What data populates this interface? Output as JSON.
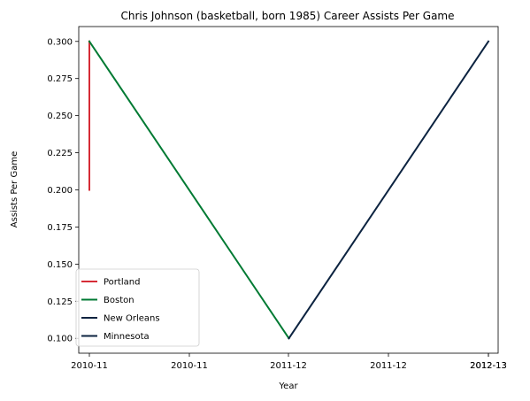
{
  "chart_data": {
    "type": "line",
    "title": "Chris Johnson (basketball, born 1985) Career Assists Per Game",
    "xlabel": "Year",
    "ylabel": "Assists Per Game",
    "x_tick_labels": [
      "2010-11",
      "2010-11",
      "2011-12",
      "2011-12",
      "2012-13",
      "2012-13"
    ],
    "y_ticks": [
      0.1,
      0.125,
      0.15,
      0.175,
      0.2,
      0.225,
      0.25,
      0.275,
      0.3
    ],
    "y_tick_labels": [
      "0.100",
      "0.125",
      "0.150",
      "0.175",
      "0.200",
      "0.225",
      "0.250",
      "0.275",
      "0.300"
    ],
    "ylim": [
      0.09,
      0.31
    ],
    "grid": false,
    "legend_position": "lower-left",
    "series": [
      {
        "name": "Portland",
        "color": "#d62c36",
        "points": [
          {
            "x": "2010-11",
            "y": 0.2
          },
          {
            "x": "2010-11",
            "y": 0.3
          }
        ]
      },
      {
        "name": "Boston",
        "color": "#007a33",
        "points": [
          {
            "x": "2010-11",
            "y": 0.3
          },
          {
            "x": "2011-12",
            "y": 0.1
          }
        ]
      },
      {
        "name": "New Orleans",
        "color": "#0c2340",
        "points": [
          {
            "x": "2011-12",
            "y": 0.1
          },
          {
            "x": "2012-13",
            "y": 0.3
          }
        ]
      },
      {
        "name": "Minnesota",
        "color": "#0c2340",
        "points": []
      }
    ]
  }
}
